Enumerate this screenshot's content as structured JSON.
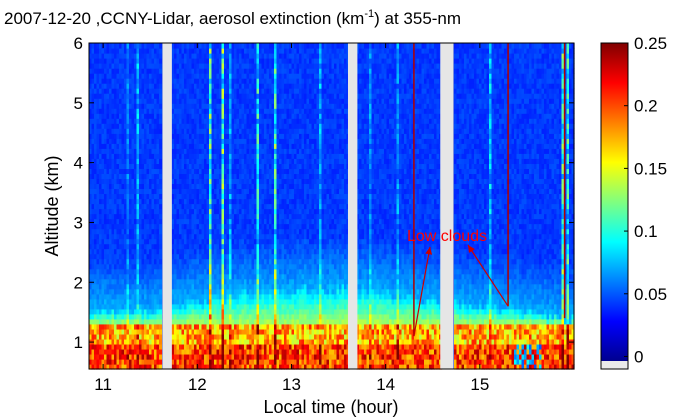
{
  "chart_data": {
    "type": "heatmap",
    "title": "2007-12-20 ,CCNY-Lidar, aerosol extinction (km",
    "title_superscript": "-1",
    "title_suffix": ") at 355-nm",
    "xlabel": "Local time (hour)",
    "ylabel": "Altitude (km)",
    "xlim": [
      10.85,
      16.0
    ],
    "ylim": [
      0.55,
      6.0
    ],
    "x_ticks": [
      "11",
      "12",
      "13",
      "14",
      "15"
    ],
    "x_tick_values": [
      11,
      12,
      13,
      14,
      15
    ],
    "y_ticks": [
      "1",
      "2",
      "3",
      "4",
      "5",
      "6"
    ],
    "y_tick_values": [
      1,
      2,
      3,
      4,
      5,
      6
    ],
    "colorbar": {
      "colormap": "jet",
      "range": [
        -0.01,
        0.25
      ],
      "ticks": [
        "0",
        "0.05",
        "0.1",
        "0.15",
        "0.2",
        "0.25"
      ],
      "tick_values": [
        0,
        0.05,
        0.1,
        0.15,
        0.2,
        0.25
      ]
    },
    "data_gaps_hours": [
      [
        11.63,
        11.73
      ],
      [
        13.6,
        13.7
      ],
      [
        14.58,
        14.72
      ]
    ],
    "aerosol_layer_top_km": [
      {
        "x": 11.0,
        "y": 1.55
      },
      {
        "x": 11.5,
        "y": 1.5
      },
      {
        "x": 12.0,
        "y": 1.7
      },
      {
        "x": 12.5,
        "y": 1.8
      },
      {
        "x": 13.0,
        "y": 1.85
      },
      {
        "x": 13.5,
        "y": 1.9
      },
      {
        "x": 14.0,
        "y": 1.8
      },
      {
        "x": 14.5,
        "y": 1.7
      },
      {
        "x": 15.0,
        "y": 1.6
      },
      {
        "x": 15.5,
        "y": 1.5
      },
      {
        "x": 15.9,
        "y": 1.4
      }
    ],
    "annotations": [
      {
        "text": "Low clouds",
        "x": 15.0,
        "y": 2.4,
        "targets": [
          [
            14.3,
            1.1
          ],
          [
            15.3,
            1.6
          ]
        ]
      }
    ],
    "grid": false,
    "legend": "none"
  }
}
